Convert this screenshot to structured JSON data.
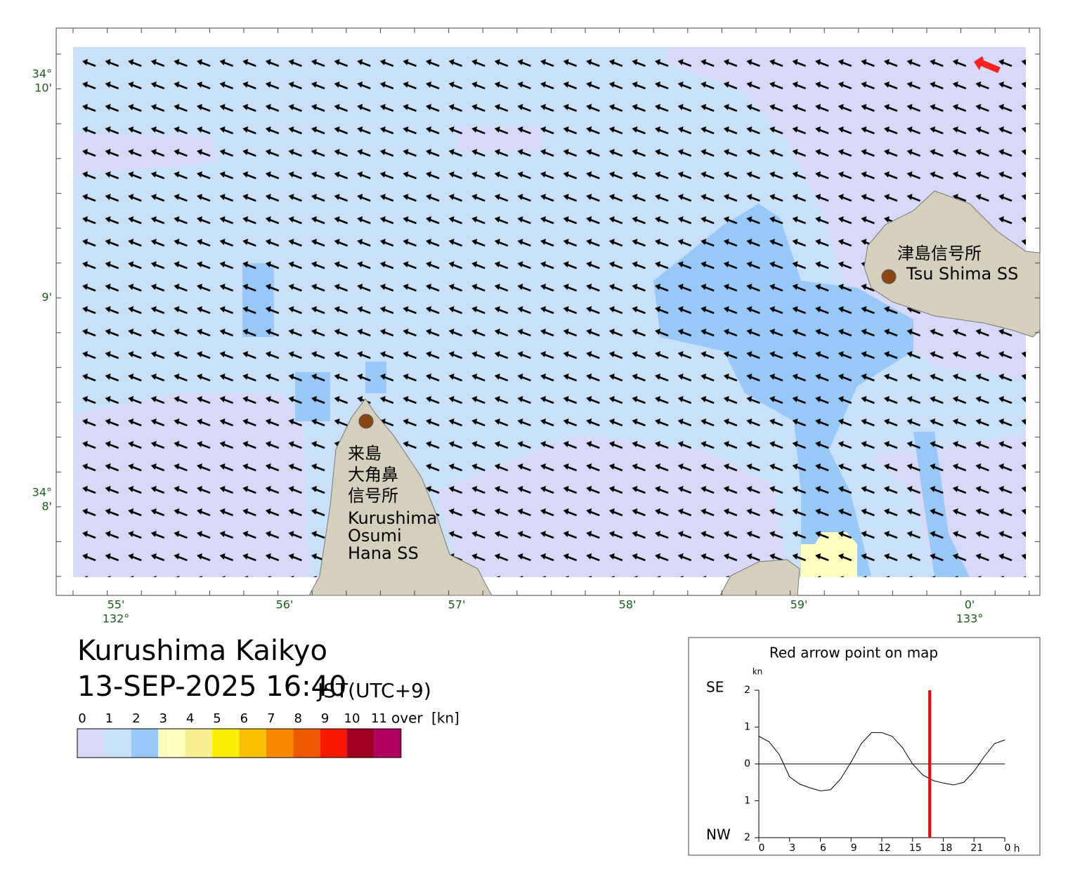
{
  "header": {
    "title": "Kurushima Kaikyo",
    "datetime": "13-SEP-2025 16:40",
    "timezone": "JST(UTC+9)"
  },
  "legend": {
    "labels": [
      "0",
      "1",
      "2",
      "3",
      "4",
      "5",
      "6",
      "7",
      "8",
      "9",
      "10",
      "11"
    ],
    "over": "over",
    "unit": "[kn]",
    "colors": [
      "#d8d8f8",
      "#c8e0f8",
      "#98c8f8",
      "#ffffc0",
      "#f8f090",
      "#f8f000",
      "#f8c000",
      "#f88800",
      "#f05800",
      "#f81800",
      "#a00020",
      "#b00060"
    ]
  },
  "map": {
    "lon_labels": [
      "55'",
      "56'",
      "57'",
      "58'",
      "59'",
      "0'"
    ],
    "lon_degrees": [
      "132°",
      "133°"
    ],
    "lat_labels": [
      {
        "deg": "34°",
        "min": "10'"
      },
      {
        "min": "9'"
      },
      {
        "deg": "34°",
        "min": "8'"
      }
    ],
    "places": [
      {
        "lines_ja": [
          "来島",
          "大角鼻",
          "信号所"
        ],
        "lines_en": [
          "Kurushima",
          "Osumi",
          "Hana SS"
        ]
      },
      {
        "lines_ja": [
          "津島信号所"
        ],
        "lines_en": [
          "Tsu Shima SS"
        ]
      }
    ]
  },
  "chart_data": {
    "type": "line",
    "title": "Red arrow point on map",
    "y_unit": "kn",
    "y_top_label": "SE",
    "y_bottom_label": "NW",
    "x_unit": "h",
    "x": [
      0,
      1,
      2,
      3,
      4,
      5,
      6,
      7,
      8,
      9,
      10,
      11,
      12,
      13,
      14,
      15,
      16,
      17,
      18,
      19,
      20,
      21,
      22,
      23,
      24
    ],
    "values": [
      0.75,
      0.6,
      0.25,
      -0.35,
      -0.55,
      -0.65,
      -0.73,
      -0.7,
      -0.4,
      0.05,
      0.55,
      0.85,
      0.85,
      0.75,
      0.45,
      0.0,
      -0.3,
      -0.45,
      -0.52,
      -0.57,
      -0.5,
      -0.2,
      0.2,
      0.55,
      0.65
    ],
    "color": "#000000",
    "xlim": [
      0,
      24
    ],
    "ylim": [
      -2,
      2
    ],
    "xticks": [
      0,
      3,
      6,
      9,
      12,
      15,
      18,
      21,
      {
        "value": 24,
        "label": "0"
      }
    ],
    "yticks": [
      2,
      1,
      0,
      {
        "value": -1,
        "label": "1"
      },
      {
        "value": -2,
        "label": "2"
      }
    ],
    "marker": {
      "x": 16.67,
      "color": "#ff0000"
    }
  }
}
